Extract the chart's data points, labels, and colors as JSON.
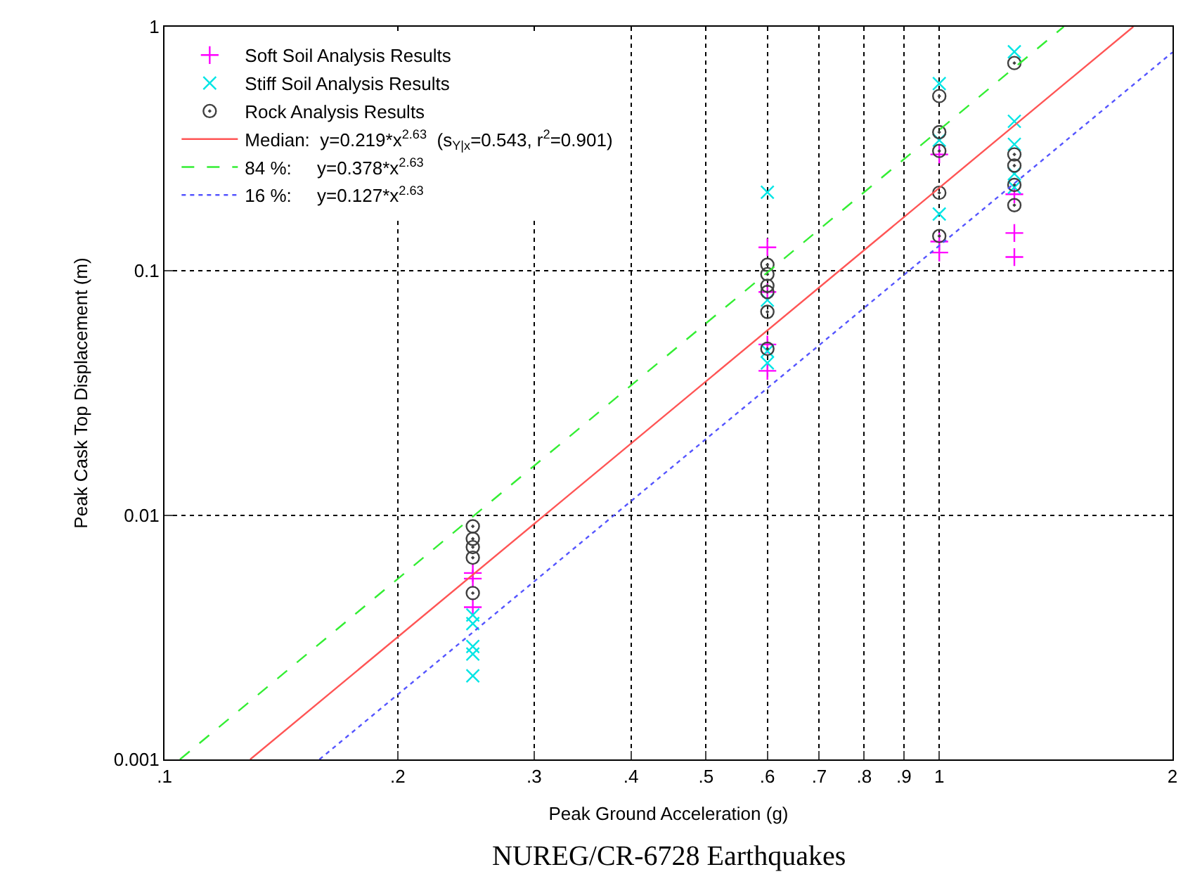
{
  "chart_data": {
    "type": "scatter",
    "title": "NUREG/CR-6728 Earthquakes",
    "xlabel": "Peak Ground Acceleration (g)",
    "ylabel": "Peak Cask Top Displacement (m)",
    "log": "xy",
    "grid": true,
    "legend": "top left",
    "xlim": [
      0.1,
      2
    ],
    "ylim": [
      0.001,
      1
    ],
    "xticks": [
      {
        "value": 0.1,
        "label": ".1"
      },
      {
        "value": 0.2,
        "label": ".2"
      },
      {
        "value": 0.3,
        "label": ".3"
      },
      {
        "value": 0.4,
        "label": ".4"
      },
      {
        "value": 0.5,
        "label": ".5"
      },
      {
        "value": 0.6,
        "label": ".6"
      },
      {
        "value": 0.7,
        "label": ".7"
      },
      {
        "value": 0.8,
        "label": ".8"
      },
      {
        "value": 0.9,
        "label": ".9"
      },
      1,
      2
    ],
    "yticks": [
      0.001,
      0.01,
      0.1,
      1
    ],
    "series": [
      {
        "name": "Soft Soil Analysis Results",
        "marker": "cross",
        "color": "#ff00ff",
        "x": [
          0.25,
          0.25,
          0.25,
          0.6,
          0.6,
          0.6,
          0.6,
          1,
          1,
          1,
          1.25,
          1.25,
          1.25
        ],
        "values": [
          0.0058,
          0.0055,
          0.0042,
          0.125,
          0.082,
          0.05,
          0.039,
          0.3,
          0.132,
          0.119,
          0.206,
          0.143,
          0.114
        ]
      },
      {
        "name": "Stiff Soil Analysis Results",
        "marker": "x",
        "color": "#00e5e5",
        "x": [
          0.25,
          0.25,
          0.25,
          0.25,
          0.25,
          0.6,
          0.6,
          0.6,
          0.6,
          1,
          1,
          1,
          1.25,
          1.25,
          1.25,
          1.25,
          1.25
        ],
        "values": [
          0.0039,
          0.0036,
          0.0029,
          0.0027,
          0.0022,
          0.21,
          0.076,
          0.047,
          0.042,
          0.585,
          0.343,
          0.171,
          0.79,
          0.41,
          0.33,
          0.25,
          0.22
        ]
      },
      {
        "name": "Rock Analysis Results",
        "marker": "circle",
        "color": "#404040",
        "x": [
          0.25,
          0.25,
          0.25,
          0.25,
          0.25,
          0.6,
          0.6,
          0.6,
          0.6,
          0.6,
          0.6,
          1,
          1,
          1,
          1,
          1,
          1.25,
          1.25,
          1.25,
          1.25,
          1.25
        ],
        "values": [
          0.009,
          0.008,
          0.0074,
          0.0067,
          0.0048,
          0.106,
          0.097,
          0.087,
          0.082,
          0.068,
          0.048,
          0.52,
          0.37,
          0.31,
          0.209,
          0.139,
          0.71,
          0.3,
          0.27,
          0.225,
          0.186
        ]
      },
      {
        "name": "Median:  y=0.219*x$^{2.63}$  (s$_{Y|x}$=0.543, r$^{2}$=0.901)",
        "type": "line",
        "line_style": "solid",
        "color": "#ff5555",
        "x": [
          0.129,
          1,
          1.78
        ],
        "values": [
          0.001,
          0.219,
          1
        ]
      },
      {
        "name": "84 %:     y=0.378*x$^{2.63}$",
        "type": "line",
        "line_style": "dashed",
        "color": "#33ee33",
        "x": [
          0.1047,
          1,
          1.4475
        ],
        "values": [
          0.001,
          0.378,
          1
        ]
      },
      {
        "name": "16 %:     y=0.127*x$^{2.63}$",
        "type": "line",
        "line_style": "dotted",
        "color": "#5555ff",
        "x": [
          0.1585,
          1,
          2
        ],
        "values": [
          0.001,
          0.127,
          0.786
        ]
      }
    ]
  }
}
